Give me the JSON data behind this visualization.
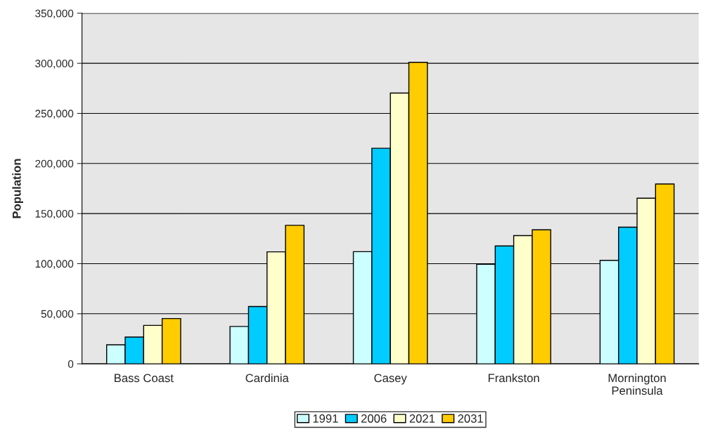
{
  "chart_data": {
    "type": "bar",
    "ylabel": "Population",
    "categories": [
      "Bass Coast",
      "Cardinia",
      "Casey",
      "Frankston",
      "Mornington\nPeninsula"
    ],
    "series": [
      {
        "name": "1991",
        "color": "#ccffff",
        "values": [
          19000,
          37300,
          112000,
          99400,
          103300
        ]
      },
      {
        "name": "2006",
        "color": "#00ccff",
        "values": [
          26700,
          57200,
          215200,
          117700,
          136400
        ]
      },
      {
        "name": "2021",
        "color": "#ffffcc",
        "values": [
          38400,
          111800,
          270300,
          128000,
          165300
        ]
      },
      {
        "name": "2031",
        "color": "#ffcc00",
        "values": [
          45200,
          138300,
          301000,
          133800,
          179500
        ]
      }
    ],
    "ylim": [
      0,
      350000
    ],
    "yticks": [
      {
        "value": 0,
        "label": "0"
      },
      {
        "value": 50000,
        "label": "50,000"
      },
      {
        "value": 100000,
        "label": "100,000"
      },
      {
        "value": 150000,
        "label": "150,000"
      },
      {
        "value": 200000,
        "label": "200,000"
      },
      {
        "value": 250000,
        "label": "250,000"
      },
      {
        "value": 300000,
        "label": "300,000"
      },
      {
        "value": 350000,
        "label": "350,000"
      }
    ],
    "grid": "y",
    "legend": "bottom"
  }
}
